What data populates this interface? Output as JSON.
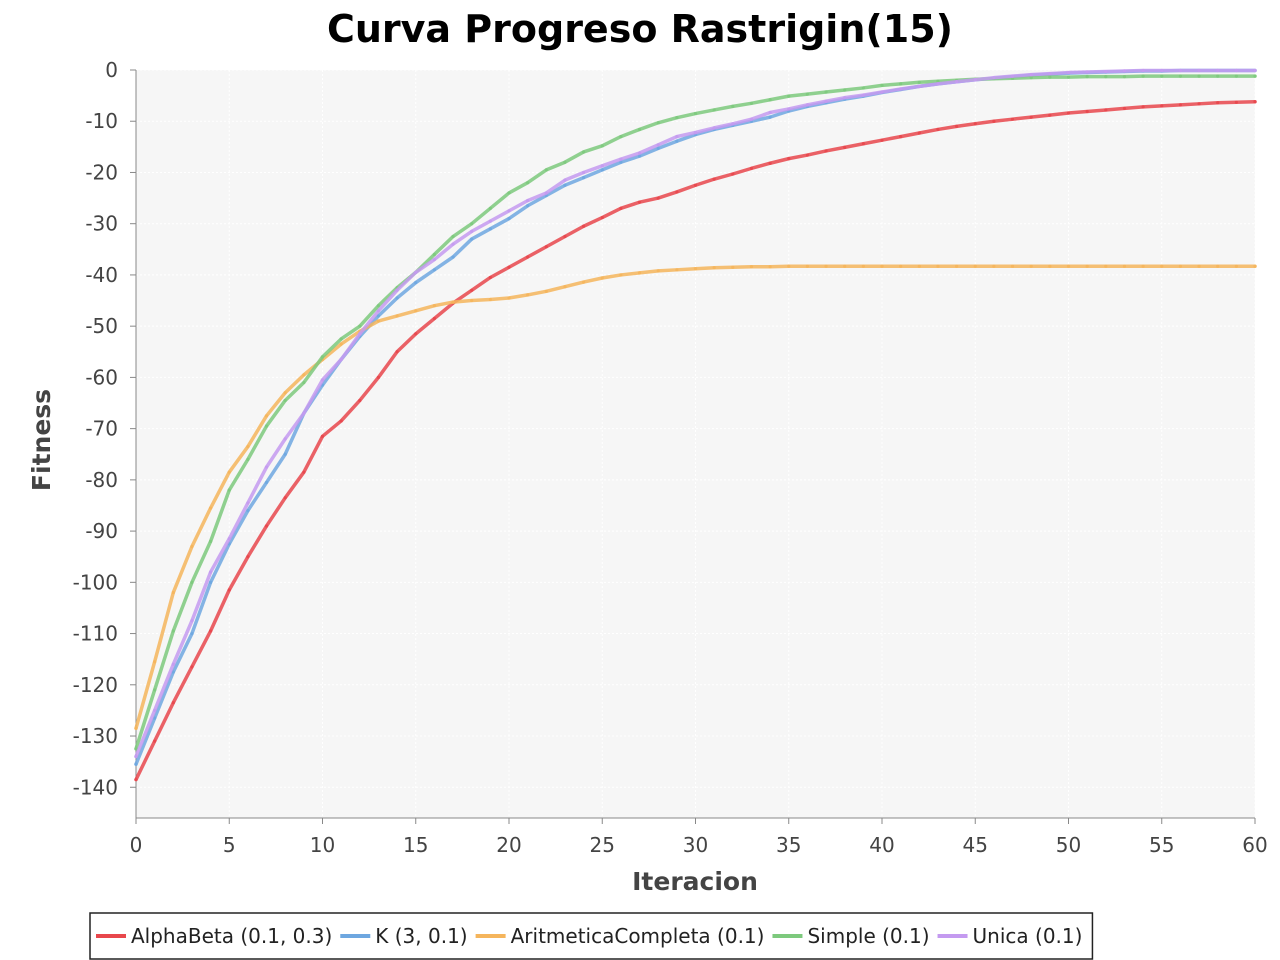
{
  "chart_data": {
    "type": "line",
    "title": "Curva Progreso Rastrigin(15)",
    "xlabel": "Iteracion",
    "ylabel": "Fitness",
    "xlim": [
      0,
      60
    ],
    "ylim": [
      -146,
      0
    ],
    "xticks": [
      0,
      5,
      10,
      15,
      20,
      25,
      30,
      35,
      40,
      45,
      50,
      55,
      60
    ],
    "yticks": [
      0,
      -10,
      -20,
      -30,
      -40,
      -50,
      -60,
      -70,
      -80,
      -90,
      -100,
      -110,
      -120,
      -130,
      -140
    ],
    "grid": true,
    "legend_position": "bottom",
    "x": [
      0,
      1,
      2,
      3,
      4,
      5,
      6,
      7,
      8,
      9,
      10,
      11,
      12,
      13,
      14,
      15,
      16,
      17,
      18,
      19,
      20,
      21,
      22,
      23,
      24,
      25,
      26,
      27,
      28,
      29,
      30,
      31,
      32,
      33,
      34,
      35,
      36,
      37,
      38,
      39,
      40,
      41,
      42,
      43,
      44,
      45,
      46,
      47,
      48,
      49,
      50,
      51,
      52,
      53,
      54,
      55,
      56,
      57,
      58,
      59,
      60
    ],
    "series": [
      {
        "name": "AlphaBeta (0.1, 0.3)",
        "color": "#e8474c",
        "values": [
          -138.5,
          -131,
          -123.5,
          -116.5,
          -109.5,
          -101.5,
          -95,
          -89,
          -83.5,
          -78.5,
          -71.5,
          -68.5,
          -64.5,
          -60,
          -55,
          -51.5,
          -48.5,
          -45.5,
          -43,
          -40.5,
          -38.5,
          -36.5,
          -34.5,
          -32.5,
          -30.5,
          -28.8,
          -27,
          -25.8,
          -25,
          -23.8,
          -22.5,
          -21.3,
          -20.3,
          -19.2,
          -18.2,
          -17.3,
          -16.6,
          -15.8,
          -15.1,
          -14.4,
          -13.7,
          -13,
          -12.3,
          -11.6,
          -11,
          -10.5,
          -10,
          -9.6,
          -9.2,
          -8.8,
          -8.4,
          -8.1,
          -7.8,
          -7.5,
          -7.2,
          -7,
          -6.8,
          -6.6,
          -6.4,
          -6.3,
          -6.2
        ]
      },
      {
        "name": "K (3, 0.1)",
        "color": "#6ea7e0",
        "values": [
          -135.5,
          -126.5,
          -117.5,
          -110,
          -100,
          -92.5,
          -86,
          -80.5,
          -75,
          -67,
          -61.5,
          -56.5,
          -52,
          -48,
          -44.5,
          -41.5,
          -39,
          -36.5,
          -33,
          -31,
          -29,
          -26.5,
          -24.5,
          -22.5,
          -21,
          -19.5,
          -18,
          -16.8,
          -15.3,
          -13.9,
          -12.6,
          -11.6,
          -10.8,
          -10,
          -9.2,
          -8,
          -7.1,
          -6.4,
          -5.7,
          -5.1,
          -4.4,
          -3.8,
          -3.2,
          -2.7,
          -2.3,
          -1.9,
          -1.6,
          -1.3,
          -1,
          -0.8,
          -0.6,
          -0.5,
          -0.4,
          -0.3,
          -0.2,
          -0.2,
          -0.1,
          -0.1,
          -0.1,
          -0.1,
          -0.1
        ]
      },
      {
        "name": "AritmeticaCompleta (0.1)",
        "color": "#f5b55c",
        "values": [
          -128.5,
          -115.5,
          -102,
          -93,
          -85.5,
          -78.5,
          -73.5,
          -67.5,
          -63,
          -59.5,
          -56.5,
          -53.5,
          -51,
          -49,
          -48,
          -47,
          -46,
          -45.3,
          -45,
          -44.8,
          -44.5,
          -43.9,
          -43.2,
          -42.3,
          -41.4,
          -40.6,
          -40,
          -39.6,
          -39.2,
          -39,
          -38.8,
          -38.6,
          -38.5,
          -38.4,
          -38.4,
          -38.3,
          -38.3,
          -38.3,
          -38.3,
          -38.3,
          -38.3,
          -38.3,
          -38.3,
          -38.3,
          -38.3,
          -38.3,
          -38.3,
          -38.3,
          -38.3,
          -38.3,
          -38.3,
          -38.3,
          -38.3,
          -38.3,
          -38.3,
          -38.3,
          -38.3,
          -38.3,
          -38.3,
          -38.3,
          -38.3
        ]
      },
      {
        "name": "Simple (0.1)",
        "color": "#7dc97d",
        "values": [
          -132.5,
          -121,
          -109.5,
          -100,
          -92,
          -82,
          -76,
          -69.5,
          -64.5,
          -61,
          -56,
          -52.5,
          -50,
          -46,
          -42.5,
          -39.5,
          -36,
          -32.5,
          -30,
          -27,
          -24,
          -22,
          -19.5,
          -18,
          -16,
          -14.8,
          -13,
          -11.6,
          -10.3,
          -9.3,
          -8.5,
          -7.8,
          -7.1,
          -6.5,
          -5.8,
          -5.1,
          -4.7,
          -4.3,
          -3.9,
          -3.5,
          -3,
          -2.7,
          -2.4,
          -2.2,
          -2,
          -1.8,
          -1.7,
          -1.6,
          -1.5,
          -1.4,
          -1.4,
          -1.3,
          -1.3,
          -1.3,
          -1.2,
          -1.2,
          -1.2,
          -1.2,
          -1.2,
          -1.2,
          -1.2
        ]
      },
      {
        "name": "Unica (0.1)",
        "color": "#c49af0",
        "values": [
          -134,
          -125,
          -116,
          -107.5,
          -98,
          -91.5,
          -84.5,
          -77.5,
          -72,
          -67,
          -60.5,
          -56.5,
          -51.5,
          -47,
          -43,
          -39.5,
          -37,
          -34,
          -31.5,
          -29.5,
          -27.5,
          -25.5,
          -24,
          -21.5,
          -20,
          -18.7,
          -17.4,
          -16.2,
          -14.6,
          -13,
          -12.2,
          -11.3,
          -10.5,
          -9.6,
          -8.3,
          -7.6,
          -6.8,
          -6.1,
          -5.4,
          -4.9,
          -4.3,
          -3.7,
          -3.2,
          -2.7,
          -2.3,
          -1.9,
          -1.5,
          -1.2,
          -0.9,
          -0.7,
          -0.5,
          -0.4,
          -0.3,
          -0.2,
          -0.1,
          -0.1,
          -0.1,
          -0.1,
          -0.1,
          -0.1,
          -0.1
        ]
      }
    ]
  }
}
